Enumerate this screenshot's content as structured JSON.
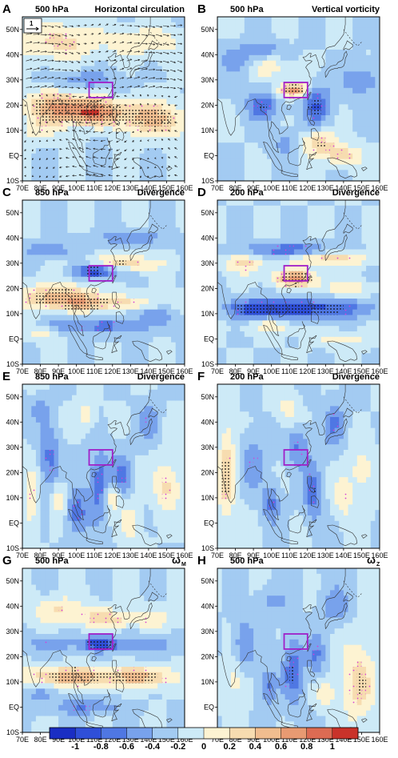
{
  "panels": [
    {
      "letter": "A",
      "level": "500 hPa",
      "title": "Horizontal circulation",
      "subscript": "",
      "vector_ref": "1"
    },
    {
      "letter": "B",
      "level": "500 hPa",
      "title": "Vertical vorticity",
      "subscript": "",
      "vector_ref": ""
    },
    {
      "letter": "C",
      "level": "850 hPa",
      "title": "Divergence",
      "subscript": "",
      "vector_ref": ""
    },
    {
      "letter": "D",
      "level": "200 hPa",
      "title": "Divergence",
      "subscript": "",
      "vector_ref": ""
    },
    {
      "letter": "E",
      "level": "850 hPa",
      "title": "Divergence",
      "subscript": "",
      "vector_ref": ""
    },
    {
      "letter": "F",
      "level": "200 hPa",
      "title": "Divergence",
      "subscript": "",
      "vector_ref": ""
    },
    {
      "letter": "G",
      "level": "500 hPa",
      "title": "ω",
      "subscript": "M",
      "vector_ref": ""
    },
    {
      "letter": "H",
      "level": "500 hPa",
      "title": "ω",
      "subscript": "Z",
      "vector_ref": ""
    }
  ],
  "chart_data": {
    "type": "heatmap",
    "x_ticks": [
      "70E",
      "80E",
      "90E",
      "100E",
      "110E",
      "120E",
      "130E",
      "140E",
      "150E",
      "160E"
    ],
    "y_ticks": [
      "50N",
      "40N",
      "30N",
      "20N",
      "10N",
      "EQ",
      "10S"
    ],
    "xlim": [
      70,
      160
    ],
    "ylim": [
      -10,
      55
    ],
    "key_region": {
      "lon": [
        107,
        120
      ],
      "lat": [
        23,
        29
      ]
    },
    "colorbar": {
      "ticks": [
        "-1",
        "-0.8",
        "-0.6",
        "-0.4",
        "-0.2",
        "0",
        "0.2",
        "0.4",
        "0.6",
        "0.8",
        "1"
      ],
      "values": [
        -1,
        -0.8,
        -0.6,
        -0.4,
        -0.2,
        0,
        0.2,
        0.4,
        0.6,
        0.8,
        1
      ],
      "colors": [
        "#1a2ec4",
        "#2f4fd8",
        "#4f77e3",
        "#78a2ec",
        "#a3cbf2",
        "#cdeaf7",
        "#fdf3d2",
        "#f7dcb0",
        "#f0bd8f",
        "#e89a72",
        "#dc6b53",
        "#c9322a"
      ]
    },
    "fields": [
      {
        "panel": "A",
        "blobs": [
          [
            110,
            17,
            22,
            5,
            0.8
          ],
          [
            90,
            20,
            20,
            6,
            0.6
          ],
          [
            145,
            14,
            18,
            7,
            0.6
          ],
          [
            90,
            45,
            25,
            8,
            0.45
          ],
          [
            140,
            45,
            20,
            6,
            0.35
          ],
          [
            105,
            30,
            18,
            4,
            -0.35
          ],
          [
            80,
            10,
            12,
            5,
            0.3
          ]
        ]
      },
      {
        "panel": "B",
        "blobs": [
          [
            112,
            26,
            8,
            3,
            0.95
          ],
          [
            95,
            20,
            10,
            6,
            -0.5
          ],
          [
            125,
            20,
            8,
            8,
            -0.6
          ],
          [
            125,
            5,
            12,
            5,
            0.55
          ],
          [
            140,
            0,
            10,
            4,
            0.5
          ],
          [
            80,
            38,
            8,
            5,
            -0.35
          ],
          [
            100,
            35,
            10,
            4,
            0.35
          ],
          [
            150,
            30,
            10,
            6,
            -0.4
          ],
          [
            110,
            5,
            10,
            5,
            -0.35
          ],
          [
            95,
            42,
            12,
            4,
            -0.3
          ]
        ]
      },
      {
        "panel": "C",
        "blobs": [
          [
            112,
            27,
            12,
            3,
            -0.85
          ],
          [
            125,
            30,
            20,
            3,
            0.6
          ],
          [
            90,
            17,
            22,
            5,
            0.65
          ],
          [
            115,
            14,
            30,
            3,
            0.5
          ],
          [
            110,
            5,
            35,
            3,
            -0.45
          ],
          [
            85,
            35,
            15,
            3,
            -0.35
          ],
          [
            130,
            40,
            20,
            3,
            -0.35
          ],
          [
            80,
            3,
            10,
            3,
            0.4
          ],
          [
            140,
            10,
            15,
            3,
            -0.3
          ]
        ]
      },
      {
        "panel": "D",
        "blobs": [
          [
            113,
            24,
            12,
            3,
            0.85
          ],
          [
            130,
            32,
            22,
            3,
            0.6
          ],
          [
            110,
            35,
            25,
            3,
            -0.6
          ],
          [
            120,
            12,
            35,
            4,
            -0.7
          ],
          [
            90,
            12,
            15,
            4,
            -0.4
          ],
          [
            85,
            30,
            12,
            4,
            0.45
          ],
          [
            140,
            20,
            20,
            3,
            0.3
          ],
          [
            100,
            5,
            15,
            3,
            0.3
          ],
          [
            140,
            0,
            15,
            3,
            0.3
          ]
        ]
      },
      {
        "panel": "E",
        "blobs": [
          [
            113,
            15,
            6,
            14,
            -0.55
          ],
          [
            100,
            5,
            6,
            10,
            -0.5
          ],
          [
            125,
            18,
            5,
            10,
            -0.45
          ],
          [
            120,
            10,
            5,
            6,
            0.5
          ],
          [
            150,
            15,
            8,
            10,
            0.45
          ],
          [
            85,
            25,
            6,
            14,
            -0.45
          ],
          [
            75,
            10,
            4,
            12,
            0.45
          ],
          [
            90,
            10,
            5,
            8,
            0.35
          ],
          [
            140,
            40,
            6,
            8,
            -0.35
          ],
          [
            105,
            42,
            5,
            6,
            0.35
          ],
          [
            130,
            0,
            6,
            8,
            0.35
          ],
          [
            80,
            45,
            6,
            5,
            -0.3
          ]
        ]
      },
      {
        "panel": "F",
        "blobs": [
          [
            75,
            20,
            5,
            20,
            0.55
          ],
          [
            123,
            12,
            5,
            12,
            -0.5
          ],
          [
            115,
            30,
            6,
            8,
            -0.45
          ],
          [
            90,
            25,
            6,
            10,
            -0.4
          ],
          [
            100,
            8,
            5,
            8,
            -0.45
          ],
          [
            135,
            40,
            6,
            10,
            -0.4
          ],
          [
            150,
            20,
            8,
            10,
            0.3
          ],
          [
            140,
            10,
            5,
            8,
            0.35
          ],
          [
            110,
            45,
            6,
            6,
            0.3
          ]
        ]
      },
      {
        "panel": "G",
        "blobs": [
          [
            113,
            25,
            10,
            3,
            -0.85
          ],
          [
            100,
            12,
            30,
            4,
            0.75
          ],
          [
            140,
            12,
            15,
            4,
            0.55
          ],
          [
            120,
            35,
            35,
            4,
            0.45
          ],
          [
            90,
            40,
            15,
            4,
            0.35
          ],
          [
            85,
            25,
            10,
            4,
            -0.45
          ],
          [
            105,
            0,
            20,
            3,
            -0.4
          ],
          [
            140,
            25,
            15,
            4,
            -0.35
          ],
          [
            80,
            5,
            8,
            3,
            -0.3
          ]
        ]
      },
      {
        "panel": "H",
        "blobs": [
          [
            112,
            15,
            6,
            14,
            -0.5
          ],
          [
            98,
            8,
            5,
            8,
            -0.45
          ],
          [
            148,
            10,
            10,
            16,
            0.5
          ],
          [
            125,
            20,
            5,
            8,
            -0.4
          ],
          [
            85,
            25,
            6,
            10,
            -0.4
          ],
          [
            80,
            10,
            5,
            8,
            0.35
          ],
          [
            135,
            40,
            8,
            8,
            -0.35
          ],
          [
            100,
            42,
            8,
            5,
            -0.3
          ],
          [
            130,
            5,
            5,
            5,
            0.35
          ]
        ]
      }
    ]
  }
}
